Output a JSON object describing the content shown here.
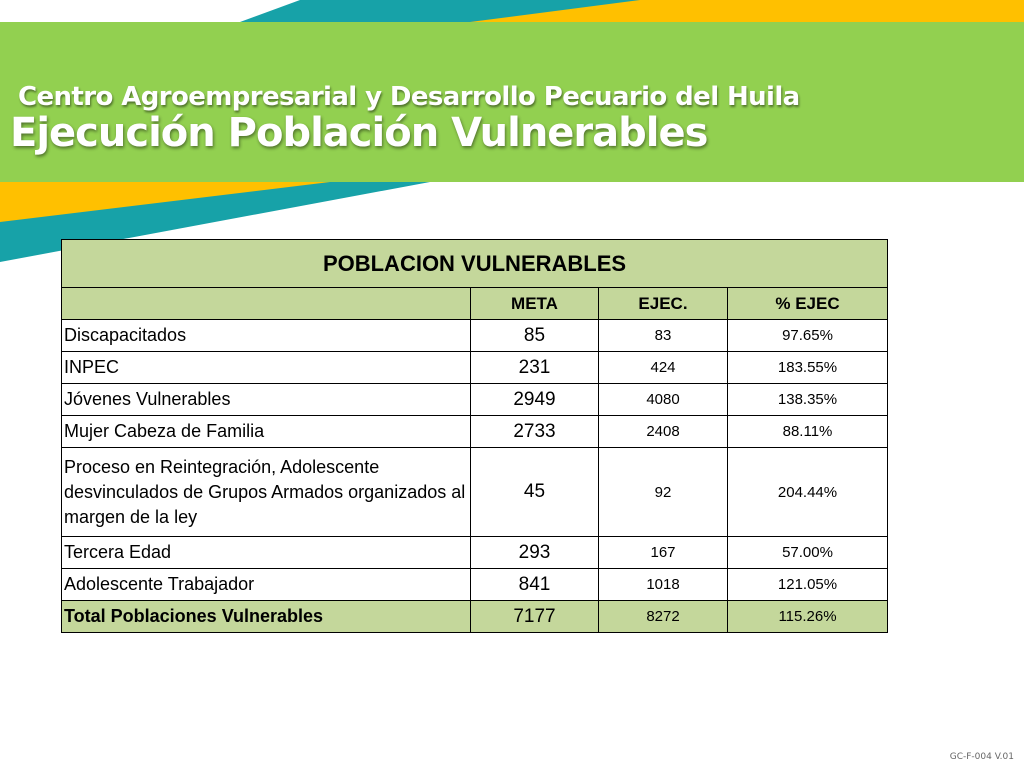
{
  "header": {
    "subtitle": "Centro Agroempresarial y Desarrollo Pecuario del Huila",
    "title": "Ejecución Población Vulnerables"
  },
  "table": {
    "title": "POBLACION VULNERABLES",
    "columns": [
      "",
      "META",
      "EJEC.",
      "% EJEC"
    ],
    "rows": [
      {
        "name": "Discapacitados",
        "meta": "85",
        "ejec": "83",
        "pct": "97.65%"
      },
      {
        "name": "INPEC",
        "meta": "231",
        "ejec": "424",
        "pct": "183.55%"
      },
      {
        "name": "Jóvenes Vulnerables",
        "meta": "2949",
        "ejec": "4080",
        "pct": "138.35%"
      },
      {
        "name": "Mujer Cabeza de Familia",
        "meta": "2733",
        "ejec": "2408",
        "pct": "88.11%"
      },
      {
        "name": "Proceso en Reintegración, Adolescente desvinculados de Grupos Armados organizados al margen de la ley",
        "meta": "45",
        "ejec": "92",
        "pct": "204.44%"
      },
      {
        "name": "Tercera Edad",
        "meta": "293",
        "ejec": "167",
        "pct": "57.00%"
      },
      {
        "name": "Adolescente Trabajador",
        "meta": "841",
        "ejec": "1018",
        "pct": "121.05%"
      }
    ],
    "total": {
      "name": "Total Poblaciones Vulnerables",
      "meta": "7177",
      "ejec": "8272",
      "pct": "115.26%"
    }
  },
  "footer": {
    "code": "GC-F-004 V.01"
  },
  "colors": {
    "banner_green": "#92d050",
    "stripe_teal": "#17a2a8",
    "stripe_yellow": "#ffc000",
    "table_header": "#c4d79b"
  }
}
